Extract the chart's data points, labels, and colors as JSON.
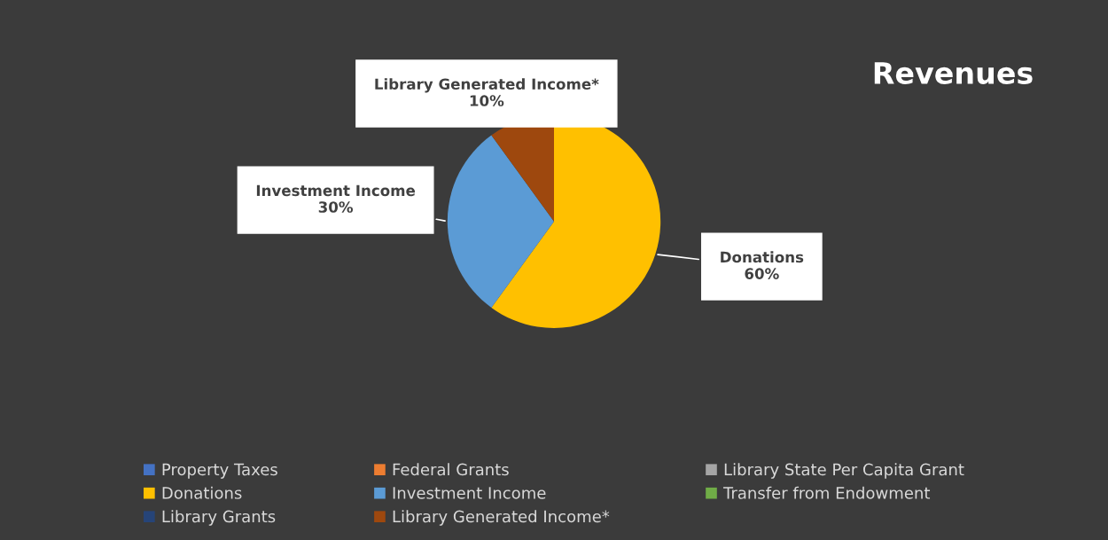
{
  "chart_data": {
    "type": "pie",
    "title": "Revenues",
    "categories": [
      "Property Taxes",
      "Federal Grants",
      "Library State Per Capita Grant",
      "Donations",
      "Investment Income",
      "Transfer from Endowment",
      "Library Grants",
      "Library Generated Income*"
    ],
    "values": [
      0,
      0,
      0,
      60,
      30,
      0,
      0,
      10
    ],
    "colors": [
      "#4472c4",
      "#ed7d31",
      "#a5a5a5",
      "#ffc000",
      "#5b9bd5",
      "#70ad47",
      "#264478",
      "#9e480e"
    ],
    "value_labels": [
      null,
      null,
      null,
      "60%",
      "30%",
      null,
      null,
      "10%"
    ],
    "legend": "bottom"
  }
}
